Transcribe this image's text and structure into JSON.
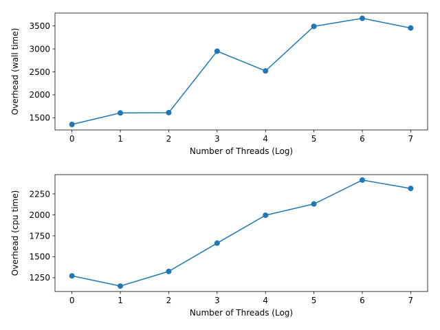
{
  "chart_data": [
    {
      "type": "line",
      "title": "",
      "xlabel": "Number of Threads (Log)",
      "ylabel": "Overhead (wall time)",
      "x": [
        0,
        1,
        2,
        3,
        4,
        5,
        6,
        7
      ],
      "xticks": [
        0,
        1,
        2,
        3,
        4,
        5,
        6,
        7
      ],
      "xlim": [
        -0.35,
        7.35
      ],
      "yticks": [
        1500,
        2000,
        2500,
        3000,
        3500
      ],
      "ylim": [
        1235,
        3780
      ],
      "grid": false,
      "color": "#1f77b4",
      "series": [
        {
          "values": [
            1355,
            1605,
            1612,
            2950,
            2520,
            3490,
            3665,
            3455
          ]
        }
      ]
    },
    {
      "type": "line",
      "title": "",
      "xlabel": "Number of Threads (Log)",
      "ylabel": "Overhead (cpu time)",
      "x": [
        0,
        1,
        2,
        3,
        4,
        5,
        6,
        7
      ],
      "xticks": [
        0,
        1,
        2,
        3,
        4,
        5,
        6,
        7
      ],
      "xlim": [
        -0.35,
        7.35
      ],
      "yticks": [
        1250,
        1500,
        1750,
        2000,
        2250
      ],
      "ylim": [
        1085,
        2480
      ],
      "grid": false,
      "color": "#1f77b4",
      "series": [
        {
          "values": [
            1272,
            1150,
            1325,
            1662,
            1995,
            2130,
            2415,
            2315
          ]
        }
      ]
    }
  ]
}
